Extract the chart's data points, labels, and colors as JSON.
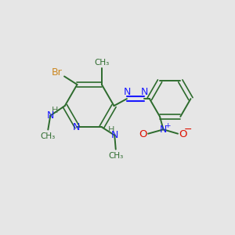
{
  "bg_color": "#e6e6e6",
  "bond_color": "#2d6b2d",
  "n_color": "#1a1aff",
  "br_color": "#cc8822",
  "o_color": "#dd1100",
  "h_color": "#4a7a4a",
  "figsize": [
    3.0,
    3.0
  ],
  "dpi": 100,
  "xlim": [
    0,
    10
  ],
  "ylim": [
    0,
    10
  ]
}
